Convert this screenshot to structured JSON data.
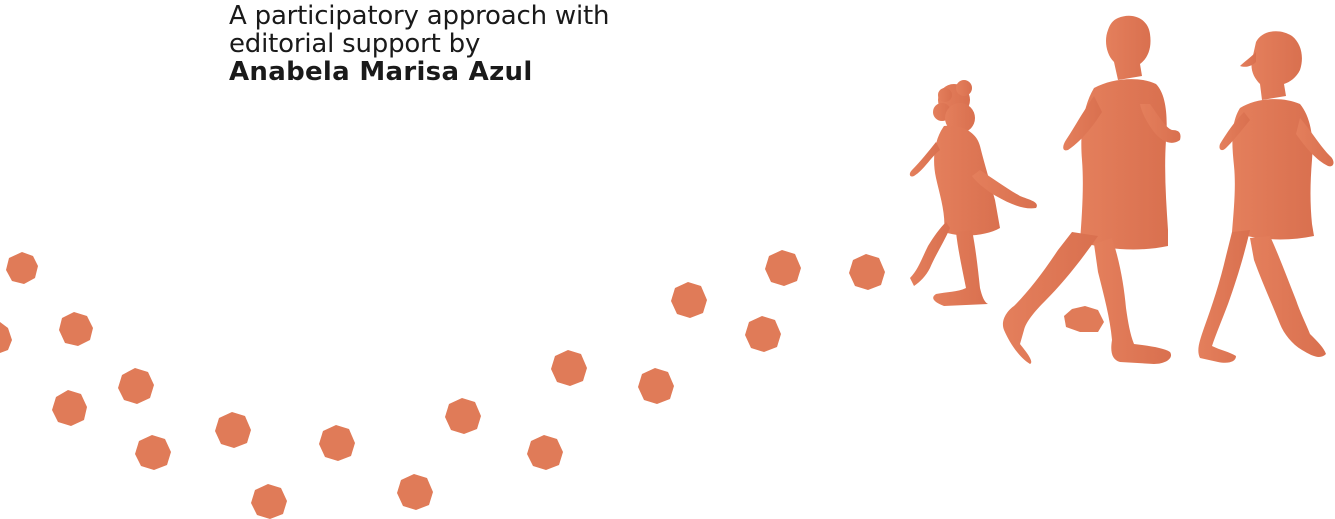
{
  "credit": {
    "line1": "A participatory approach with",
    "line2": "editorial support by",
    "editor": "Anabela Marisa Azul"
  },
  "colors": {
    "accent": "#E07B58",
    "text": "#1a1a1a",
    "background": "#ffffff"
  },
  "illustration": {
    "figures": [
      "child-running-silhouette",
      "man-running-silhouette",
      "woman-running-silhouette"
    ],
    "footprints": "heptagon-footprint-trail"
  }
}
